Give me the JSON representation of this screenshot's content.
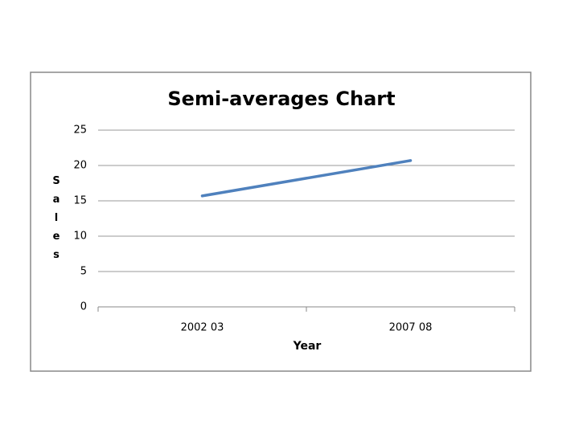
{
  "chart_data": {
    "type": "line",
    "title": "Semi-averages Chart",
    "x_label": "Year",
    "y_label": "Sales",
    "categories": [
      "2002 03",
      "2007 08"
    ],
    "series": [
      {
        "name": "Sales",
        "color": "#4f81bd",
        "values": [
          15.7,
          20.7
        ]
      }
    ],
    "ylim": [
      0,
      25
    ],
    "yticks": [
      0,
      5,
      10,
      15,
      20,
      25
    ],
    "grid": true
  }
}
